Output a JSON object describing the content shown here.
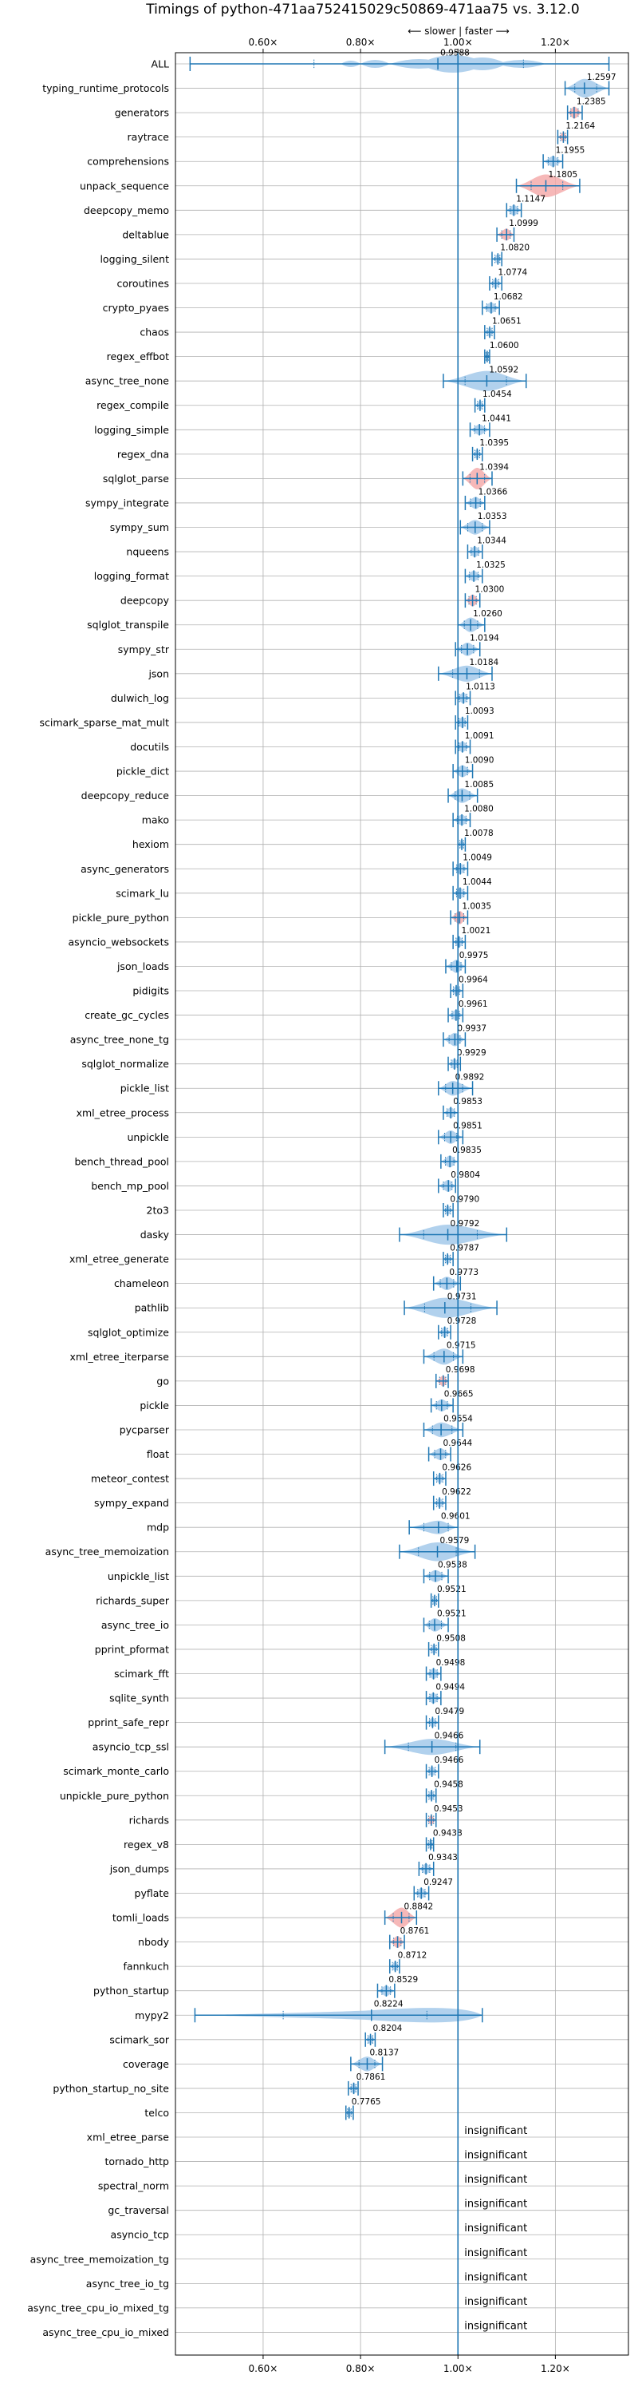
{
  "chart_data": {
    "type": "violin",
    "title": "Timings of python-471aa752415029c50869-471aa75 vs. 3.12.0",
    "subtitle": "⟵ slower | faster ⟶",
    "x_ticks": [
      {
        "value": 0.6,
        "label": "0.60×"
      },
      {
        "value": 0.8,
        "label": "0.80×"
      },
      {
        "value": 1.0,
        "label": "1.00×"
      },
      {
        "value": 1.2,
        "label": "1.20×"
      }
    ],
    "xlim": [
      0.42,
      1.35
    ],
    "reference_line": 1.0,
    "colors": {
      "line": "#1f77b4",
      "violin": "#9ec5e8",
      "highlight": "#f4a6a6",
      "grid": "#b0b0b0"
    },
    "insignificant_label": "insignificant",
    "benchmarks": [
      {
        "name": "ALL",
        "value": 0.9588,
        "label": "0.9588",
        "min": 0.45,
        "max": 1.31,
        "w": 0.55,
        "shape": "all"
      },
      {
        "name": "typing_runtime_protocols",
        "value": 1.2597,
        "label": "1.2597",
        "min": 1.22,
        "max": 1.31,
        "w": 0.7,
        "shape": "wide"
      },
      {
        "name": "generators",
        "value": 1.2385,
        "label": "1.2385",
        "min": 1.225,
        "max": 1.255,
        "w": 0.45,
        "hl": true
      },
      {
        "name": "raytrace",
        "value": 1.2164,
        "label": "1.2164",
        "min": 1.205,
        "max": 1.225,
        "w": 0.35,
        "hl": true
      },
      {
        "name": "comprehensions",
        "value": 1.1955,
        "label": "1.1955",
        "min": 1.175,
        "max": 1.215,
        "w": 0.4
      },
      {
        "name": "unpack_sequence",
        "value": 1.1805,
        "label": "1.1805",
        "min": 1.12,
        "max": 1.25,
        "w": 0.85,
        "hl": true
      },
      {
        "name": "deepcopy_memo",
        "value": 1.1147,
        "label": "1.1147",
        "min": 1.1,
        "max": 1.13,
        "w": 0.4
      },
      {
        "name": "deltablue",
        "value": 1.0999,
        "label": "1.0999",
        "min": 1.08,
        "max": 1.115,
        "w": 0.45,
        "hl": true
      },
      {
        "name": "logging_silent",
        "value": 1.082,
        "label": "1.0820",
        "min": 1.07,
        "max": 1.09,
        "w": 0.35
      },
      {
        "name": "coroutines",
        "value": 1.0774,
        "label": "1.0774",
        "min": 1.065,
        "max": 1.09,
        "w": 0.35
      },
      {
        "name": "crypto_pyaes",
        "value": 1.0682,
        "label": "1.0682",
        "min": 1.05,
        "max": 1.085,
        "w": 0.4
      },
      {
        "name": "chaos",
        "value": 1.0651,
        "label": "1.0651",
        "min": 1.055,
        "max": 1.075,
        "w": 0.35
      },
      {
        "name": "regex_effbot",
        "value": 1.06,
        "label": "1.0600",
        "min": 1.055,
        "max": 1.065,
        "w": 0.3
      },
      {
        "name": "async_tree_none",
        "value": 1.0592,
        "label": "1.0592",
        "min": 0.97,
        "max": 1.14,
        "w": 0.75,
        "shape": "wide"
      },
      {
        "name": "regex_compile",
        "value": 1.0454,
        "label": "1.0454",
        "min": 1.035,
        "max": 1.055,
        "w": 0.35
      },
      {
        "name": "logging_simple",
        "value": 1.0441,
        "label": "1.0441",
        "min": 1.025,
        "max": 1.065,
        "w": 0.4
      },
      {
        "name": "regex_dna",
        "value": 1.0395,
        "label": "1.0395",
        "min": 1.03,
        "max": 1.05,
        "w": 0.35
      },
      {
        "name": "sqlglot_parse",
        "value": 1.0394,
        "label": "1.0394",
        "min": 1.01,
        "max": 1.07,
        "w": 0.8,
        "hl": true
      },
      {
        "name": "sympy_integrate",
        "value": 1.0366,
        "label": "1.0366",
        "min": 1.015,
        "max": 1.055,
        "w": 0.45
      },
      {
        "name": "sympy_sum",
        "value": 1.0353,
        "label": "1.0353",
        "min": 1.005,
        "max": 1.065,
        "w": 0.55
      },
      {
        "name": "nqueens",
        "value": 1.0344,
        "label": "1.0344",
        "min": 1.02,
        "max": 1.05,
        "w": 0.4
      },
      {
        "name": "logging_format",
        "value": 1.0325,
        "label": "1.0325",
        "min": 1.015,
        "max": 1.05,
        "w": 0.4
      },
      {
        "name": "deepcopy",
        "value": 1.03,
        "label": "1.0300",
        "min": 1.015,
        "max": 1.045,
        "w": 0.45,
        "hl": true
      },
      {
        "name": "sqlglot_transpile",
        "value": 1.026,
        "label": "1.0260",
        "min": 1.0,
        "max": 1.055,
        "w": 0.55
      },
      {
        "name": "sympy_str",
        "value": 1.0194,
        "label": "1.0194",
        "min": 0.995,
        "max": 1.045,
        "w": 0.5
      },
      {
        "name": "json",
        "value": 1.0184,
        "label": "1.0184",
        "min": 0.96,
        "max": 1.07,
        "w": 0.6
      },
      {
        "name": "dulwich_log",
        "value": 1.0113,
        "label": "1.0113",
        "min": 0.995,
        "max": 1.025,
        "w": 0.4
      },
      {
        "name": "scimark_sparse_mat_mult",
        "value": 1.0093,
        "label": "1.0093",
        "min": 0.995,
        "max": 1.02,
        "w": 0.4
      },
      {
        "name": "docutils",
        "value": 1.0091,
        "label": "1.0091",
        "min": 0.995,
        "max": 1.025,
        "w": 0.4
      },
      {
        "name": "pickle_dict",
        "value": 1.009,
        "label": "1.0090",
        "min": 0.99,
        "max": 1.03,
        "w": 0.45
      },
      {
        "name": "deepcopy_reduce",
        "value": 1.0085,
        "label": "1.0085",
        "min": 0.98,
        "max": 1.04,
        "w": 0.55
      },
      {
        "name": "mako",
        "value": 1.008,
        "label": "1.0080",
        "min": 0.99,
        "max": 1.025,
        "w": 0.4
      },
      {
        "name": "hexiom",
        "value": 1.0078,
        "label": "1.0078",
        "min": 1.0,
        "max": 1.015,
        "w": 0.35
      },
      {
        "name": "async_generators",
        "value": 1.0049,
        "label": "1.0049",
        "min": 0.99,
        "max": 1.02,
        "w": 0.4
      },
      {
        "name": "scimark_lu",
        "value": 1.0044,
        "label": "1.0044",
        "min": 0.99,
        "max": 1.02,
        "w": 0.4
      },
      {
        "name": "pickle_pure_python",
        "value": 1.0035,
        "label": "1.0035",
        "min": 0.985,
        "max": 1.02,
        "w": 0.5,
        "hl": true
      },
      {
        "name": "asyncio_websockets",
        "value": 1.0021,
        "label": "1.0021",
        "min": 0.99,
        "max": 1.015,
        "w": 0.4
      },
      {
        "name": "json_loads",
        "value": 0.9975,
        "label": "0.9975",
        "min": 0.975,
        "max": 1.015,
        "w": 0.5
      },
      {
        "name": "pidigits",
        "value": 0.9964,
        "label": "0.9964",
        "min": 0.985,
        "max": 1.01,
        "w": 0.35
      },
      {
        "name": "create_gc_cycles",
        "value": 0.9961,
        "label": "0.9961",
        "min": 0.98,
        "max": 1.01,
        "w": 0.4
      },
      {
        "name": "async_tree_none_tg",
        "value": 0.9937,
        "label": "0.9937",
        "min": 0.97,
        "max": 1.015,
        "w": 0.5
      },
      {
        "name": "sqlglot_normalize",
        "value": 0.9929,
        "label": "0.9929",
        "min": 0.98,
        "max": 1.005,
        "w": 0.4
      },
      {
        "name": "pickle_list",
        "value": 0.9892,
        "label": "0.9892",
        "min": 0.96,
        "max": 1.03,
        "w": 0.55
      },
      {
        "name": "xml_etree_process",
        "value": 0.9853,
        "label": "0.9853",
        "min": 0.97,
        "max": 1.0,
        "w": 0.4
      },
      {
        "name": "unpickle",
        "value": 0.9851,
        "label": "0.9851",
        "min": 0.96,
        "max": 1.01,
        "w": 0.5
      },
      {
        "name": "bench_thread_pool",
        "value": 0.9835,
        "label": "0.9835",
        "min": 0.965,
        "max": 1.0,
        "w": 0.45
      },
      {
        "name": "bench_mp_pool",
        "value": 0.9804,
        "label": "0.9804",
        "min": 0.96,
        "max": 0.995,
        "w": 0.45
      },
      {
        "name": "2to3",
        "value": 0.979,
        "label": "0.9790",
        "min": 0.97,
        "max": 0.99,
        "w": 0.35
      },
      {
        "name": "dasky",
        "value": 0.9792,
        "label": "0.9792",
        "min": 0.88,
        "max": 1.1,
        "w": 0.75,
        "shape": "wide"
      },
      {
        "name": "xml_etree_generate",
        "value": 0.9787,
        "label": "0.9787",
        "min": 0.97,
        "max": 0.99,
        "w": 0.35
      },
      {
        "name": "chameleon",
        "value": 0.9773,
        "label": "0.9773",
        "min": 0.95,
        "max": 1.005,
        "w": 0.5
      },
      {
        "name": "pathlib",
        "value": 0.9731,
        "label": "0.9731",
        "min": 0.89,
        "max": 1.08,
        "w": 0.75,
        "shape": "wide"
      },
      {
        "name": "sqlglot_optimize",
        "value": 0.9728,
        "label": "0.9728",
        "min": 0.96,
        "max": 0.985,
        "w": 0.4
      },
      {
        "name": "xml_etree_iterparse",
        "value": 0.9715,
        "label": "0.9715",
        "min": 0.93,
        "max": 1.01,
        "w": 0.6
      },
      {
        "name": "go",
        "value": 0.9698,
        "label": "0.9698",
        "min": 0.955,
        "max": 0.98,
        "w": 0.4,
        "hl": true
      },
      {
        "name": "pickle",
        "value": 0.9665,
        "label": "0.9665",
        "min": 0.945,
        "max": 0.99,
        "w": 0.45
      },
      {
        "name": "pycparser",
        "value": 0.9654,
        "label": "0.9654",
        "min": 0.93,
        "max": 1.01,
        "w": 0.55
      },
      {
        "name": "float",
        "value": 0.9644,
        "label": "0.9644",
        "min": 0.94,
        "max": 0.985,
        "w": 0.45
      },
      {
        "name": "meteor_contest",
        "value": 0.9626,
        "label": "0.9626",
        "min": 0.95,
        "max": 0.975,
        "w": 0.35
      },
      {
        "name": "sympy_expand",
        "value": 0.9622,
        "label": "0.9622",
        "min": 0.95,
        "max": 0.975,
        "w": 0.35
      },
      {
        "name": "mdp",
        "value": 0.9601,
        "label": "0.9601",
        "min": 0.9,
        "max": 1.0,
        "w": 0.5
      },
      {
        "name": "async_tree_memoization",
        "value": 0.9579,
        "label": "0.9579",
        "min": 0.88,
        "max": 1.035,
        "w": 0.7,
        "shape": "wide"
      },
      {
        "name": "unpickle_list",
        "value": 0.9538,
        "label": "0.9538",
        "min": 0.93,
        "max": 0.98,
        "w": 0.45
      },
      {
        "name": "richards_super",
        "value": 0.9521,
        "label": "0.9521",
        "min": 0.945,
        "max": 0.96,
        "w": 0.35
      },
      {
        "name": "async_tree_io",
        "value": 0.9521,
        "label": "0.9521",
        "min": 0.93,
        "max": 0.98,
        "w": 0.5
      },
      {
        "name": "pprint_pformat",
        "value": 0.9508,
        "label": "0.9508",
        "min": 0.94,
        "max": 0.96,
        "w": 0.35
      },
      {
        "name": "scimark_fft",
        "value": 0.9498,
        "label": "0.9498",
        "min": 0.935,
        "max": 0.965,
        "w": 0.4
      },
      {
        "name": "sqlite_synth",
        "value": 0.9494,
        "label": "0.9494",
        "min": 0.935,
        "max": 0.965,
        "w": 0.4
      },
      {
        "name": "pprint_safe_repr",
        "value": 0.9479,
        "label": "0.9479",
        "min": 0.935,
        "max": 0.96,
        "w": 0.35
      },
      {
        "name": "asyncio_tcp_ssl",
        "value": 0.9466,
        "label": "0.9466",
        "min": 0.85,
        "max": 1.045,
        "w": 0.6,
        "shape": "wide"
      },
      {
        "name": "scimark_monte_carlo",
        "value": 0.9466,
        "label": "0.9466",
        "min": 0.935,
        "max": 0.96,
        "w": 0.35
      },
      {
        "name": "unpickle_pure_python",
        "value": 0.9458,
        "label": "0.9458",
        "min": 0.935,
        "max": 0.955,
        "w": 0.35
      },
      {
        "name": "richards",
        "value": 0.9453,
        "label": "0.9453",
        "min": 0.935,
        "max": 0.955,
        "w": 0.35,
        "hl": true
      },
      {
        "name": "regex_v8",
        "value": 0.9438,
        "label": "0.9438",
        "min": 0.935,
        "max": 0.95,
        "w": 0.35
      },
      {
        "name": "json_dumps",
        "value": 0.9343,
        "label": "0.9343",
        "min": 0.92,
        "max": 0.95,
        "w": 0.4
      },
      {
        "name": "pyflate",
        "value": 0.9247,
        "label": "0.9247",
        "min": 0.91,
        "max": 0.94,
        "w": 0.4
      },
      {
        "name": "tomli_loads",
        "value": 0.8842,
        "label": "0.8842",
        "min": 0.85,
        "max": 0.915,
        "w": 0.75,
        "hl": true
      },
      {
        "name": "nbody",
        "value": 0.8761,
        "label": "0.8761",
        "min": 0.86,
        "max": 0.89,
        "w": 0.45,
        "hl": true
      },
      {
        "name": "fannkuch",
        "value": 0.8712,
        "label": "0.8712",
        "min": 0.86,
        "max": 0.88,
        "w": 0.35
      },
      {
        "name": "python_startup",
        "value": 0.8529,
        "label": "0.8529",
        "min": 0.835,
        "max": 0.87,
        "w": 0.4
      },
      {
        "name": "mypy2",
        "value": 0.8224,
        "label": "0.8224",
        "min": 0.46,
        "max": 1.05,
        "w": 0.7,
        "shape": "mypy"
      },
      {
        "name": "scimark_sor",
        "value": 0.8204,
        "label": "0.8204",
        "min": 0.81,
        "max": 0.83,
        "w": 0.35
      },
      {
        "name": "coverage",
        "value": 0.8137,
        "label": "0.8137",
        "min": 0.78,
        "max": 0.845,
        "w": 0.55
      },
      {
        "name": "python_startup_no_site",
        "value": 0.7861,
        "label": "0.7861",
        "min": 0.775,
        "max": 0.795,
        "w": 0.4
      },
      {
        "name": "telco",
        "value": 0.7765,
        "label": "0.7765",
        "min": 0.77,
        "max": 0.785,
        "w": 0.35
      },
      {
        "name": "xml_etree_parse",
        "insignificant": true
      },
      {
        "name": "tornado_http",
        "insignificant": true
      },
      {
        "name": "spectral_norm",
        "insignificant": true
      },
      {
        "name": "gc_traversal",
        "insignificant": true
      },
      {
        "name": "asyncio_tcp",
        "insignificant": true
      },
      {
        "name": "async_tree_memoization_tg",
        "insignificant": true
      },
      {
        "name": "async_tree_io_tg",
        "insignificant": true
      },
      {
        "name": "async_tree_cpu_io_mixed_tg",
        "insignificant": true
      },
      {
        "name": "async_tree_cpu_io_mixed",
        "insignificant": true
      }
    ]
  }
}
